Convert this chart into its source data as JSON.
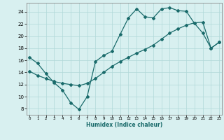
{
  "title": "",
  "xlabel": "Humidex (Indice chaleur)",
  "ylabel": "",
  "bg_color": "#d8f0f0",
  "line_color": "#1a6b6b",
  "grid_color": "#b0d8d8",
  "x_ticks": [
    0,
    1,
    2,
    3,
    4,
    5,
    6,
    7,
    8,
    9,
    10,
    11,
    12,
    13,
    14,
    15,
    16,
    17,
    18,
    19,
    20,
    21,
    22,
    23
  ],
  "y_ticks": [
    8,
    10,
    12,
    14,
    16,
    18,
    20,
    22,
    24
  ],
  "xlim": [
    -0.3,
    23.3
  ],
  "ylim": [
    7.0,
    25.5
  ],
  "curve1_x": [
    0,
    1,
    2,
    3,
    4,
    5,
    6,
    7,
    8,
    9,
    10,
    11,
    12,
    13,
    14,
    15,
    16,
    17,
    18,
    19,
    20,
    21,
    22,
    23
  ],
  "curve1_y": [
    16.5,
    15.5,
    13.8,
    12.3,
    11.1,
    9.0,
    7.9,
    10.0,
    15.8,
    16.8,
    17.5,
    20.3,
    23.0,
    24.5,
    23.2,
    23.0,
    24.5,
    24.7,
    24.2,
    24.1,
    22.1,
    20.5,
    18.0,
    19.0
  ],
  "curve2_x": [
    0,
    1,
    2,
    3,
    4,
    5,
    6,
    7,
    8,
    9,
    10,
    11,
    12,
    13,
    14,
    15,
    16,
    17,
    18,
    19,
    20,
    21,
    22,
    23
  ],
  "curve2_y": [
    14.2,
    13.5,
    13.0,
    12.5,
    12.2,
    12.0,
    11.8,
    12.2,
    13.0,
    14.0,
    15.0,
    15.8,
    16.5,
    17.2,
    17.8,
    18.5,
    19.5,
    20.5,
    21.2,
    21.8,
    22.2,
    22.3,
    18.0,
    19.0
  ]
}
